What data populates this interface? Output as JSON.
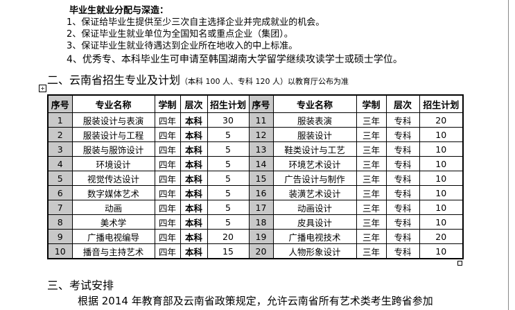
{
  "employment": {
    "heading": "毕业生就业分配与深造：",
    "items": [
      "1、保证给毕业生提供至少三次自主选择企业并完成就业的机会。",
      "2、保证毕业生就业单位为全国知名或重点企业（集团）。",
      "3、保证毕业生就业待遇达到企业所在地收入的中上标准。",
      "4、优秀专、本科毕业生可申请至韩国湖南大学留学继续攻读学士或硕士学位。"
    ]
  },
  "section2": {
    "title": "二、云南省招生专业及计划",
    "note": "（本科 100 人、专科 120 人）以教育厅公布为准"
  },
  "table": {
    "headers": [
      "序号",
      "专业名称",
      "学制",
      "层次",
      "招生计划",
      "序号",
      "专业名称",
      "学制",
      "层次",
      "招生计划"
    ],
    "rows": [
      [
        "1",
        "服装设计与表演",
        "四年",
        "本科",
        "30",
        "11",
        "服装表演",
        "三年",
        "专科",
        "20"
      ],
      [
        "2",
        "服装设计与工程",
        "四年",
        "本科",
        "5",
        "12",
        "服装设计",
        "三年",
        "专科",
        "10"
      ],
      [
        "3",
        "服装与服饰设计",
        "四年",
        "本科",
        "5",
        "13",
        "鞋类设计与工艺",
        "三年",
        "专科",
        "10"
      ],
      [
        "4",
        "环境设计",
        "四年",
        "本科",
        "5",
        "14",
        "环境艺术设计",
        "三年",
        "专科",
        "10"
      ],
      [
        "5",
        "视觉传达设计",
        "四年",
        "本科",
        "5",
        "15",
        "广告设计与制作",
        "三年",
        "专科",
        "10"
      ],
      [
        "6",
        "数字媒体艺术",
        "四年",
        "本科",
        "5",
        "16",
        "装潢艺术设计",
        "三年",
        "专科",
        "10"
      ],
      [
        "7",
        "动画",
        "四年",
        "本科",
        "5",
        "17",
        "动画设计",
        "三年",
        "专科",
        "10"
      ],
      [
        "8",
        "美术学",
        "四年",
        "本科",
        "5",
        "18",
        "皮具设计",
        "三年",
        "专科",
        "10"
      ],
      [
        "9",
        "广播电视编导",
        "四年",
        "本科",
        "20",
        "19",
        "广播电视技术",
        "三年",
        "专科",
        "20"
      ],
      [
        "10",
        "播音与主持艺术",
        "四年",
        "本科",
        "15",
        "20",
        "人物形象设计",
        "三年",
        "专科",
        "10"
      ]
    ]
  },
  "section3": {
    "title": "三、考试安排",
    "paragraph": "根据 2014 年教育部及云南省政策规定，允许云南省所有艺术类考生跨省参加"
  }
}
